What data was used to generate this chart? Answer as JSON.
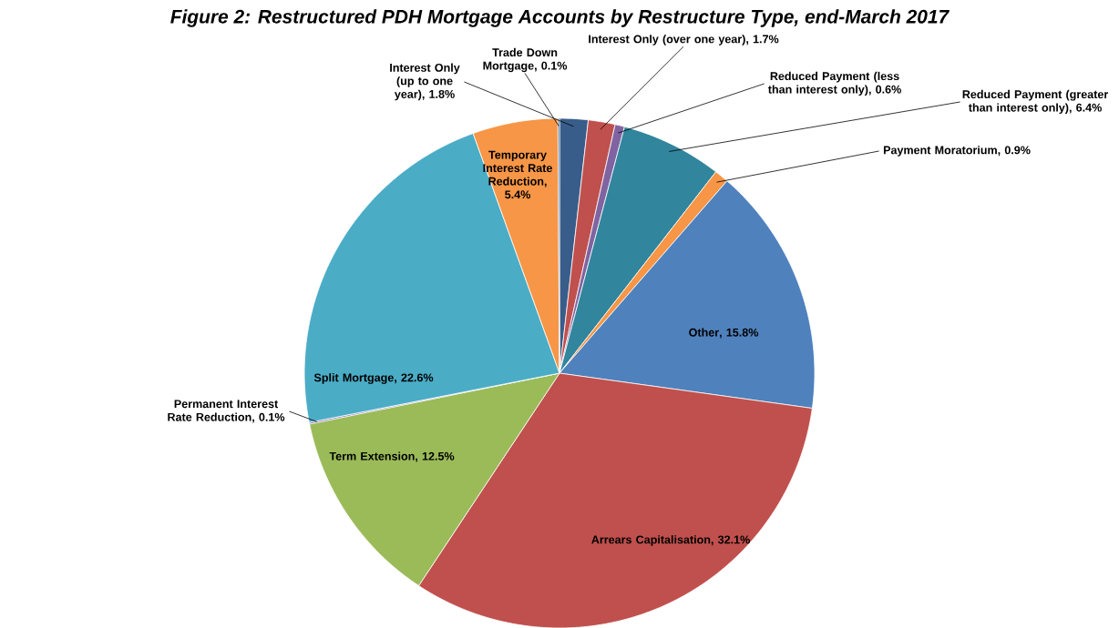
{
  "chart_data": {
    "type": "pie",
    "title": "Figure 2: Restructured PDH Mortgage Accounts by Restructure Type, end-March 2017",
    "categories": [
      "Interest Only (up to one year)",
      "Interest Only (over one year)",
      "Reduced Payment (less than interest only)",
      "Reduced Payment (greater than interest only)",
      "Payment Moratorium",
      "Other",
      "Arrears Capitalisation",
      "Term Extension",
      "Permanent Interest Rate Reduction",
      "Split Mortgage",
      "Temporary Interest Rate Reduction",
      "Trade Down Mortgage"
    ],
    "values": [
      1.8,
      1.7,
      0.6,
      6.4,
      0.9,
      15.8,
      32.1,
      12.5,
      0.1,
      22.6,
      5.4,
      0.1
    ],
    "value_labels": [
      ", 1.8%",
      ", 1.7%",
      ", 0.6%",
      ", 6.4%",
      ", 0.9%",
      ", 15.8%",
      ", 32.1%",
      ", 12.5%",
      ", 0.1%",
      ", 22.6%",
      ", 5.4%",
      ", 0.1%"
    ],
    "colors": [
      "#385d8a",
      "#c0504d",
      "#8064a2",
      "#31859c",
      "#f79646",
      "#4f81bd",
      "#c0504d",
      "#9bbb59",
      "#8064a2",
      "#4bacc6",
      "#f79646",
      "#2c4d75"
    ]
  }
}
